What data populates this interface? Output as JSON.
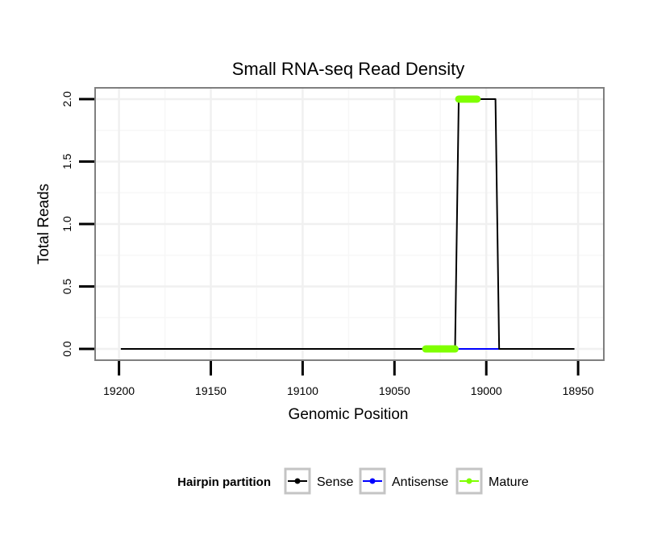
{
  "chart_data": {
    "type": "line",
    "title": "Small RNA-seq Read Density",
    "xlabel": "Genomic Position",
    "ylabel": "Total Reads",
    "xlim": [
      19213,
      18936
    ],
    "x_reversed": true,
    "ylim": [
      -0.09,
      2.09
    ],
    "x_ticks": [
      19200,
      19150,
      19100,
      19050,
      19000,
      18950
    ],
    "y_ticks": [
      0.0,
      0.5,
      1.0,
      1.5,
      2.0
    ],
    "y_tick_labels": [
      "0.0",
      "0.5",
      "1.0",
      "1.5",
      "2.0"
    ],
    "grid": true,
    "legend": {
      "position": "bottom",
      "title": "Hairpin partition",
      "entries": [
        "Sense",
        "Antisense",
        "Mature"
      ]
    },
    "series": [
      {
        "name": "Sense",
        "color": "#000000",
        "x": [
          19199,
          19017,
          19015,
          18995,
          18993,
          18952
        ],
        "y": [
          0,
          0,
          2,
          2,
          0,
          0
        ]
      },
      {
        "name": "Antisense",
        "color": "#0000ff",
        "x": [
          19017,
          18993
        ],
        "y": [
          0,
          0
        ]
      },
      {
        "name": "Mature",
        "color": "#7fff00",
        "segments": [
          {
            "x": [
              19033,
              19017
            ],
            "y": [
              0,
              0
            ]
          },
          {
            "x": [
              19015,
              19005
            ],
            "y": [
              2,
              2
            ]
          }
        ]
      }
    ]
  }
}
